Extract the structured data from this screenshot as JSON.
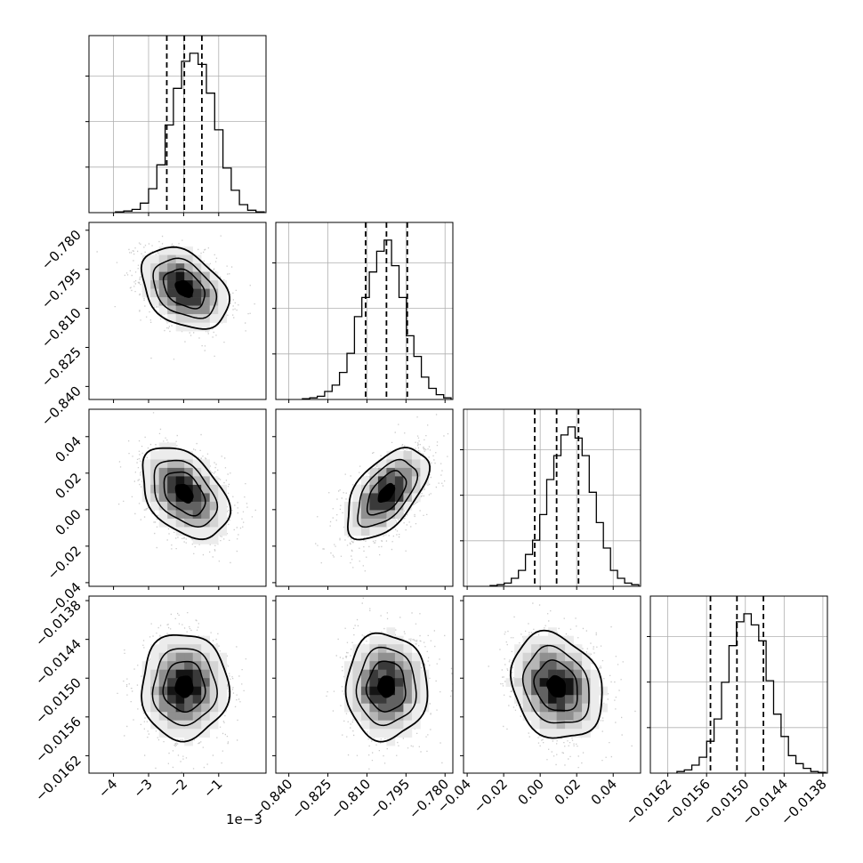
{
  "figure": {
    "offset_text": "1e−3"
  },
  "chart_data": {
    "type": "corner",
    "grid": true,
    "parameters": [
      {
        "range": [
          -4.7,
          0.35
        ],
        "ticks": [
          -4,
          -3,
          -2,
          -1
        ],
        "tick_labels": [
          "−4",
          "−3",
          "−2",
          "−1"
        ],
        "offset_text": "1e−3",
        "quantiles": [
          -2.48,
          -1.98,
          -1.48
        ],
        "hist": [
          0.005,
          0.01,
          0.02,
          0.06,
          0.15,
          0.3,
          0.55,
          0.78,
          0.95,
          1.0,
          0.93,
          0.75,
          0.52,
          0.28,
          0.14,
          0.05,
          0.015,
          0.005
        ]
      },
      {
        "range": [
          -0.845,
          -0.777
        ],
        "ticks": [
          -0.84,
          -0.825,
          -0.81,
          -0.795,
          -0.78
        ],
        "tick_labels": [
          "−0.840",
          "−0.825",
          "−0.810",
          "−0.795",
          "−0.780"
        ],
        "quantiles": [
          -0.8105,
          -0.8025,
          -0.7945
        ],
        "hist": [
          0.005,
          0.01,
          0.02,
          0.05,
          0.09,
          0.17,
          0.29,
          0.52,
          0.64,
          0.8,
          0.93,
          1.0,
          0.84,
          0.64,
          0.4,
          0.27,
          0.14,
          0.07,
          0.03,
          0.01
        ]
      },
      {
        "range": [
          -0.042,
          0.055
        ],
        "ticks": [
          -0.04,
          -0.02,
          0.0,
          0.02,
          0.04
        ],
        "tick_labels": [
          "−0.04",
          "−0.02",
          "0.00",
          "0.02",
          "0.04"
        ],
        "quantiles": [
          -0.003,
          0.009,
          0.021
        ],
        "hist": [
          0.005,
          0.01,
          0.02,
          0.05,
          0.1,
          0.2,
          0.29,
          0.45,
          0.67,
          0.82,
          0.95,
          1.0,
          0.93,
          0.82,
          0.59,
          0.4,
          0.24,
          0.1,
          0.05,
          0.02,
          0.01
        ]
      },
      {
        "range": [
          -0.01647,
          -0.01373
        ],
        "ticks": [
          -0.0162,
          -0.0156,
          -0.015,
          -0.0144,
          -0.0138
        ],
        "tick_labels": [
          "−0.0162",
          "−0.0156",
          "−0.0150",
          "−0.0144",
          "−0.0138"
        ],
        "quantiles": [
          -0.01554,
          -0.01513,
          -0.01472
        ],
        "hist": [
          0.01,
          0.02,
          0.05,
          0.1,
          0.2,
          0.34,
          0.57,
          0.8,
          0.95,
          1.0,
          0.93,
          0.83,
          0.58,
          0.37,
          0.23,
          0.11,
          0.06,
          0.03,
          0.01,
          0.005
        ]
      }
    ],
    "pairs": [
      {
        "x": 0,
        "y": 1,
        "mean": [
          -1.98,
          -0.8025
        ],
        "sd": [
          0.62,
          0.0078
        ],
        "rho": -0.35
      },
      {
        "x": 0,
        "y": 2,
        "mean": [
          -1.98,
          0.009
        ],
        "sd": [
          0.62,
          0.0125
        ],
        "rho": -0.4
      },
      {
        "x": 1,
        "y": 2,
        "mean": [
          -0.8025,
          0.009
        ],
        "sd": [
          0.0078,
          0.0125
        ],
        "rho": 0.55
      },
      {
        "x": 0,
        "y": 3,
        "mean": [
          -1.98,
          -0.01513
        ],
        "sd": [
          0.62,
          0.00041
        ],
        "rho": 0.0
      },
      {
        "x": 1,
        "y": 3,
        "mean": [
          -0.8025,
          -0.01513
        ],
        "sd": [
          0.0078,
          0.00041
        ],
        "rho": 0.0
      },
      {
        "x": 2,
        "y": 3,
        "mean": [
          0.009,
          -0.01513
        ],
        "sd": [
          0.0125,
          0.00041
        ],
        "rho": -0.2
      }
    ],
    "colors": {
      "line": "#000000",
      "points": "#8c8c8c",
      "grid": "#b0b0b0"
    }
  }
}
